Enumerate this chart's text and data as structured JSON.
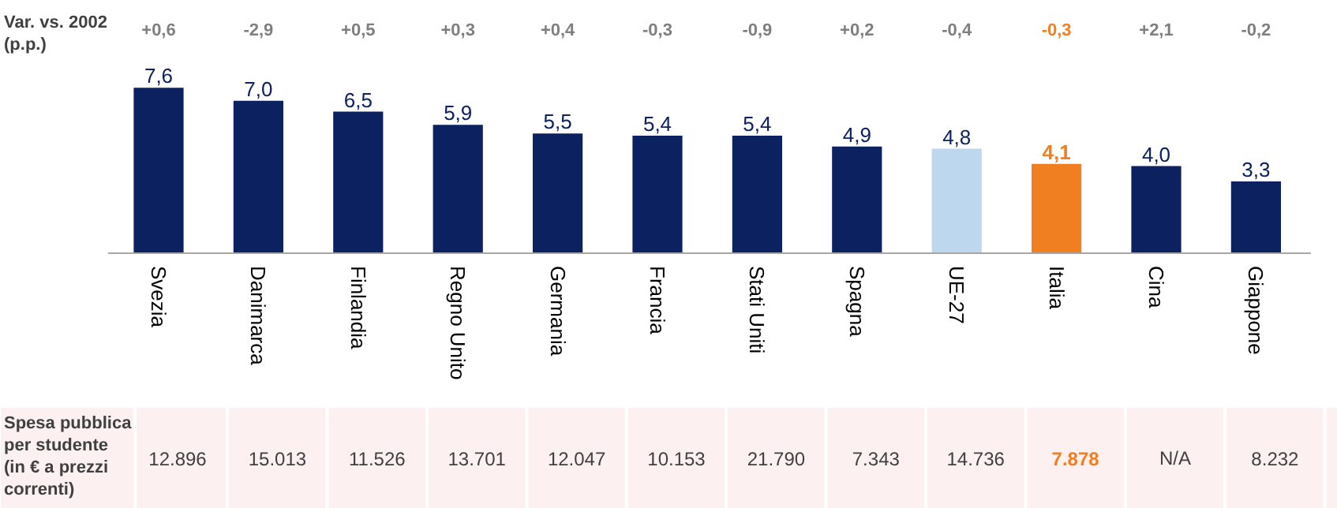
{
  "chart_data": {
    "type": "bar",
    "categories": [
      "Svezia",
      "Danimarca",
      "Finlandia",
      "Regno Unito",
      "Germania",
      "Francia",
      "Stati Uniti",
      "Spagna",
      "UE-27",
      "Italia",
      "Cina",
      "Giappone"
    ],
    "values": [
      7.6,
      7.0,
      6.5,
      5.9,
      5.5,
      5.4,
      5.4,
      4.9,
      4.8,
      4.1,
      4.0,
      3.3
    ],
    "colors": [
      "#0b2160",
      "#0b2160",
      "#0b2160",
      "#0b2160",
      "#0b2160",
      "#0b2160",
      "#0b2160",
      "#0b2160",
      "#bdd7ee",
      "#f07f22",
      "#0b2160",
      "#0b2160"
    ],
    "value_labels": [
      "7,6",
      "7,0",
      "6,5",
      "5,9",
      "5,5",
      "5,4",
      "5,4",
      "4,9",
      "4,8",
      "4,1",
      "4,0",
      "3,3"
    ],
    "annotations": [
      "Var. vs. 2002 (p.p.)",
      "+0,6",
      "-2,9",
      "+0,5",
      "+0,3",
      "+0,4",
      "-0,3",
      "-0,9",
      "+0,2",
      "-0,4",
      "-0,3",
      "+2,1",
      "-0,2",
      "Spesa pubblica per studente (in € a prezzi correnti)",
      "12.896",
      "15.013",
      "11.526",
      "13.701",
      "12.047",
      "10.153",
      "21.790",
      "7.343",
      "14.736",
      "7.878",
      "N/A",
      "8.232"
    ]
  }
}
